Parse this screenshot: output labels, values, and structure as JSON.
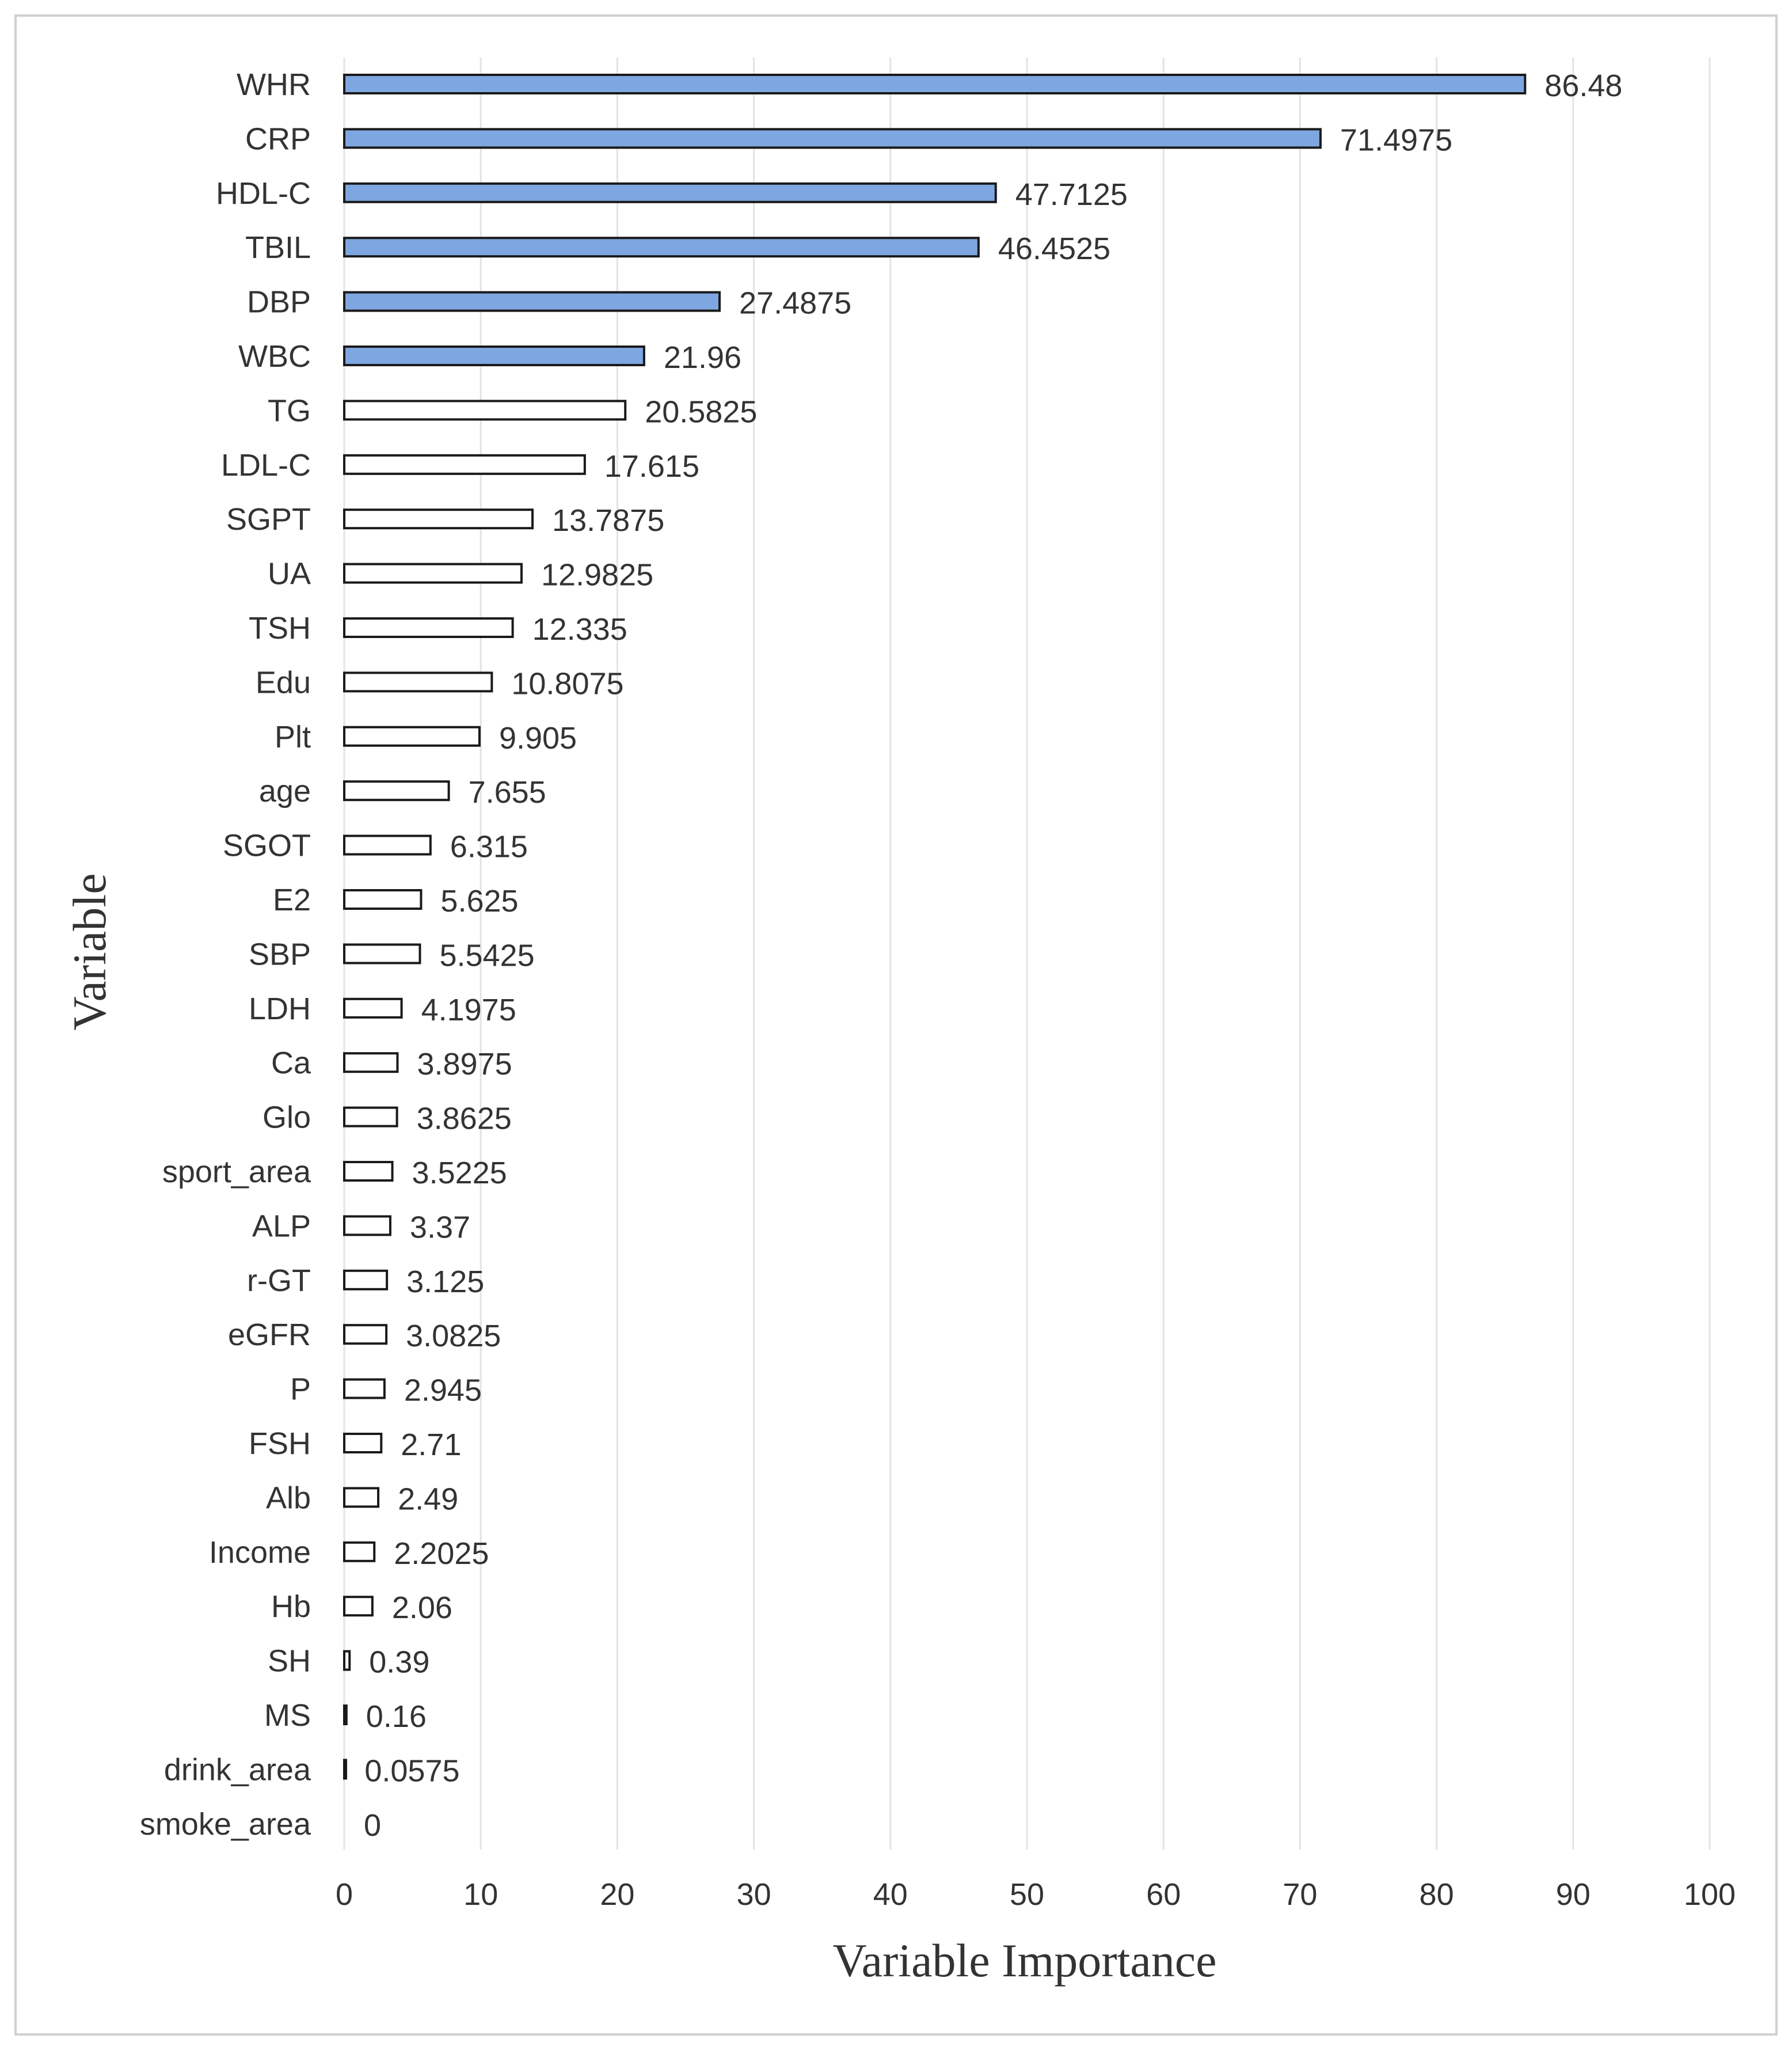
{
  "chart_data": {
    "type": "bar",
    "orientation": "horizontal",
    "xlabel": "Variable Importance",
    "ylabel": "Variable",
    "xlim": [
      0,
      100
    ],
    "x_ticks": [
      0,
      10,
      20,
      30,
      40,
      50,
      60,
      70,
      80,
      90,
      100
    ],
    "grid": "vertical",
    "colors": {
      "highlight_fill": "#7ea6e0",
      "plain_fill": "#ffffff",
      "bar_stroke": "#1a1a1a",
      "grid": "#e3e3e3",
      "text": "#333333"
    },
    "categories": [
      "WHR",
      "CRP",
      "HDL-C",
      "TBIL",
      "DBP",
      "WBC",
      "TG",
      "LDL-C",
      "SGPT",
      "UA",
      "TSH",
      "Edu",
      "Plt",
      "age",
      "SGOT",
      "E2",
      "SBP",
      "LDH",
      "Ca",
      "Glo",
      "sport_area",
      "ALP",
      "r-GT",
      "eGFR",
      "P",
      "FSH",
      "Alb",
      "Income",
      "Hb",
      "SH",
      "MS",
      "drink_area",
      "smoke_area"
    ],
    "values": [
      86.48,
      71.4975,
      47.7125,
      46.4525,
      27.4875,
      21.96,
      20.5825,
      17.615,
      13.7875,
      12.9825,
      12.335,
      10.8075,
      9.905,
      7.655,
      6.315,
      5.625,
      5.5425,
      4.1975,
      3.8975,
      3.8625,
      3.5225,
      3.37,
      3.125,
      3.0825,
      2.945,
      2.71,
      2.49,
      2.2025,
      2.06,
      0.39,
      0.16,
      0.0575,
      0
    ],
    "value_labels": [
      "86.48",
      "71.4975",
      "47.7125",
      "46.4525",
      "27.4875",
      "21.96",
      "20.5825",
      "17.615",
      "13.7875",
      "12.9825",
      "12.335",
      "10.8075",
      "9.905",
      "7.655",
      "6.315",
      "5.625",
      "5.5425",
      "4.1975",
      "3.8975",
      "3.8625",
      "3.5225",
      "3.37",
      "3.125",
      "3.0825",
      "2.945",
      "2.71",
      "2.49",
      "2.2025",
      "2.06",
      "0.39",
      "0.16",
      "0.0575",
      "0"
    ],
    "highlighted_top_n": 6
  }
}
